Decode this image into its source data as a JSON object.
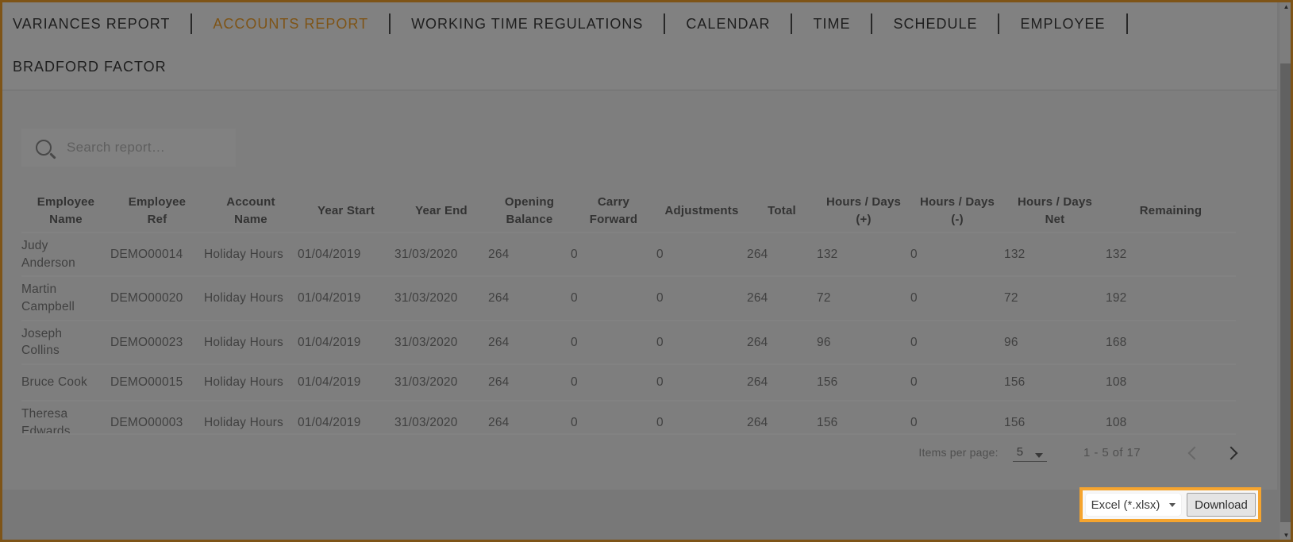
{
  "colors": {
    "accent": "#f5a42e",
    "dim_overlay": "rgba(0,0,0,0.485)"
  },
  "nav": {
    "active_tab": "ACCOUNTS REPORT",
    "row1_tabs": [
      "VARIANCES REPORT",
      "ACCOUNTS REPORT",
      "WORKING TIME REGULATIONS",
      "CALENDAR",
      "TIME",
      "SCHEDULE",
      "EMPLOYEE"
    ],
    "row2_tabs": [
      "BRADFORD FACTOR"
    ]
  },
  "search": {
    "placeholder": "Search report…",
    "value": "",
    "icon": "magnifier-icon"
  },
  "report_table": {
    "columns": [
      "Employee Name",
      "Employee Ref",
      "Account Name",
      "Year Start",
      "Year End",
      "Opening Balance",
      "Carry Forward",
      "Adjustments",
      "Total",
      "Hours / Days (+)",
      "Hours / Days (-)",
      "Hours / Days Net",
      "Remaining"
    ],
    "rows": [
      [
        "Judy Anderson",
        "DEMO00014",
        "Holiday Hours",
        "01/04/2019",
        "31/03/2020",
        "264",
        "0",
        "0",
        "264",
        "132",
        "0",
        "132",
        "132"
      ],
      [
        "Martin Campbell",
        "DEMO00020",
        "Holiday Hours",
        "01/04/2019",
        "31/03/2020",
        "264",
        "0",
        "0",
        "264",
        "72",
        "0",
        "72",
        "192"
      ],
      [
        "Joseph Collins",
        "DEMO00023",
        "Holiday Hours",
        "01/04/2019",
        "31/03/2020",
        "264",
        "0",
        "0",
        "264",
        "96",
        "0",
        "96",
        "168"
      ],
      [
        "Bruce Cook",
        "DEMO00015",
        "Holiday Hours",
        "01/04/2019",
        "31/03/2020",
        "264",
        "0",
        "0",
        "264",
        "156",
        "0",
        "156",
        "108"
      ],
      [
        "Theresa Edwards",
        "DEMO00003",
        "Holiday Hours",
        "01/04/2019",
        "31/03/2020",
        "264",
        "0",
        "0",
        "264",
        "156",
        "0",
        "156",
        "108"
      ]
    ]
  },
  "pagination": {
    "items_per_page_label": "Items per page:",
    "items_per_page_value": "5",
    "range_label": "1 - 5 of 17",
    "prev_icon": "chevron-left",
    "next_icon": "chevron-right"
  },
  "export_bar": {
    "format_value": "Excel (*.xlsx)",
    "download_label": "Download"
  },
  "icons": {
    "search": "magnifier",
    "per_page_caret": "dropdown-caret",
    "format_caret": "dropdown-caret",
    "scroll_up": "▲",
    "scroll_down": "▼"
  }
}
